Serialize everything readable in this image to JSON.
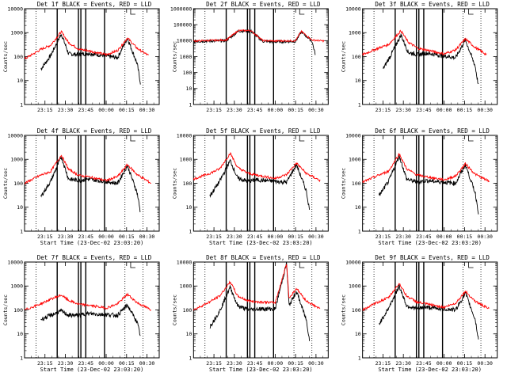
{
  "chart_data": [
    {
      "type": "line",
      "title": "Det 1f BLACK = Events, RED = LLD",
      "profile": "A",
      "yticks": [
        "1",
        "10",
        "100",
        "1000",
        "10000"
      ],
      "xtick_labels": [
        "23:15",
        "23:30",
        "23:45",
        "00:00",
        "00:15",
        "00:30"
      ],
      "xlabel": "",
      "ylabel": "Counts/sec",
      "series": [
        {
          "name": "Events",
          "color": "#000000",
          "points": [
            [
              23.2,
              30
            ],
            [
              23.32,
              110
            ],
            [
              23.45,
              900
            ],
            [
              23.54,
              130
            ],
            [
              23.67,
              120
            ],
            [
              23.77,
              140
            ],
            [
              24.14,
              90
            ],
            [
              24.26,
              600
            ],
            [
              24.38,
              50
            ],
            [
              24.42,
              8
            ]
          ]
        },
        {
          "name": "LLD",
          "color": "#ff0000",
          "points": [
            [
              23.0,
              80
            ],
            [
              23.2,
              200
            ],
            [
              23.32,
              300
            ],
            [
              23.45,
              1100
            ],
            [
              23.54,
              380
            ],
            [
              23.67,
              200
            ],
            [
              23.77,
              180
            ],
            [
              24.0,
              120
            ],
            [
              24.14,
              180
            ],
            [
              24.26,
              600
            ],
            [
              24.38,
              220
            ],
            [
              24.52,
              110
            ]
          ]
        }
      ]
    },
    {
      "type": "line",
      "title": "Det 2f BLACK = Events, RED = LLD",
      "profile": "B",
      "yticks": [
        "1",
        "10",
        "100",
        "1000",
        "10000",
        "100000",
        "1000000"
      ],
      "xtick_labels": [
        "23:15",
        "23:30",
        "23:45",
        "00:00",
        "00:15",
        "00:30"
      ],
      "xlabel": "",
      "ylabel": "Counts/sec",
      "series": [
        {
          "name": "Events",
          "color": "#000000",
          "points": [
            [
              23.0,
              9000
            ],
            [
              23.4,
              10000
            ],
            [
              23.55,
              40000
            ],
            [
              23.7,
              40000
            ],
            [
              23.85,
              9000
            ],
            [
              24.0,
              8500
            ],
            [
              24.25,
              9000
            ],
            [
              24.32,
              35000
            ],
            [
              24.45,
              9500
            ],
            [
              24.49,
              1500
            ]
          ]
        },
        {
          "name": "LLD",
          "color": "#ff0000",
          "points": [
            [
              23.0,
              9500
            ],
            [
              23.4,
              11000
            ],
            [
              23.55,
              43000
            ],
            [
              23.7,
              43000
            ],
            [
              23.85,
              10000
            ],
            [
              24.0,
              9500
            ],
            [
              24.25,
              10000
            ],
            [
              24.32,
              38000
            ],
            [
              24.45,
              11000
            ],
            [
              24.6,
              9500
            ]
          ]
        }
      ]
    },
    {
      "type": "line",
      "title": "Det 3f BLACK = Events, RED = LLD",
      "profile": "A",
      "yticks": [
        "1",
        "10",
        "100",
        "1000",
        "10000"
      ],
      "xtick_labels": [
        "23:15",
        "23:30",
        "23:45",
        "00:00",
        "00:15",
        "00:30"
      ],
      "xlabel": "",
      "ylabel": "Counts/sec",
      "series": [
        {
          "name": "Events",
          "color": "#000000",
          "points": [
            [
              23.25,
              30
            ],
            [
              23.35,
              120
            ],
            [
              23.47,
              800
            ],
            [
              23.56,
              150
            ],
            [
              23.68,
              120
            ],
            [
              23.78,
              140
            ],
            [
              24.14,
              90
            ],
            [
              24.26,
              500
            ],
            [
              24.38,
              40
            ],
            [
              24.42,
              6
            ]
          ]
        },
        {
          "name": "LLD",
          "color": "#ff0000",
          "points": [
            [
              23.0,
              120
            ],
            [
              23.2,
              230
            ],
            [
              23.32,
              320
            ],
            [
              23.47,
              1200
            ],
            [
              23.56,
              400
            ],
            [
              23.68,
              220
            ],
            [
              23.78,
              190
            ],
            [
              24.0,
              130
            ],
            [
              24.14,
              190
            ],
            [
              24.26,
              550
            ],
            [
              24.38,
              240
            ],
            [
              24.52,
              120
            ]
          ]
        }
      ]
    },
    {
      "type": "line",
      "title": "Det 4f BLACK = Events, RED = LLD",
      "profile": "A",
      "yticks": [
        "1",
        "10",
        "100",
        "1000",
        "10000"
      ],
      "xtick_labels": [
        "23:15",
        "23:30",
        "23:45",
        "00:00",
        "00:15",
        "00:30"
      ],
      "xlabel": "Start Time (23-Dec-02 23:03:20)",
      "ylabel": "Counts/sec",
      "series": [
        {
          "name": "Events",
          "color": "#000000",
          "points": [
            [
              23.2,
              28
            ],
            [
              23.32,
              120
            ],
            [
              23.45,
              1300
            ],
            [
              23.54,
              150
            ],
            [
              23.67,
              130
            ],
            [
              23.77,
              150
            ],
            [
              24.14,
              100
            ],
            [
              24.26,
              550
            ],
            [
              24.38,
              40
            ],
            [
              24.42,
              6
            ]
          ]
        },
        {
          "name": "LLD",
          "color": "#ff0000",
          "points": [
            [
              23.0,
              100
            ],
            [
              23.2,
              220
            ],
            [
              23.32,
              310
            ],
            [
              23.45,
              1500
            ],
            [
              23.54,
              380
            ],
            [
              23.67,
              210
            ],
            [
              23.77,
              190
            ],
            [
              24.0,
              130
            ],
            [
              24.14,
              190
            ],
            [
              24.26,
              600
            ],
            [
              24.38,
              230
            ],
            [
              24.55,
              100
            ]
          ]
        }
      ]
    },
    {
      "type": "line",
      "title": "Det 5f BLACK = Events, RED = LLD",
      "profile": "A",
      "yticks": [
        "1",
        "10",
        "100",
        "1000",
        "10000"
      ],
      "xtick_labels": [
        "23:15",
        "23:30",
        "23:45",
        "00:00",
        "00:15",
        "00:30"
      ],
      "xlabel": "Start Time (23-Dec-02 23:03:20)",
      "ylabel": "Counts/sec",
      "series": [
        {
          "name": "Events",
          "color": "#000000",
          "points": [
            [
              23.2,
              30
            ],
            [
              23.32,
              120
            ],
            [
              23.45,
              900
            ],
            [
              23.54,
              160
            ],
            [
              23.67,
              120
            ],
            [
              23.77,
              140
            ],
            [
              24.14,
              110
            ],
            [
              24.26,
              600
            ],
            [
              24.38,
              50
            ],
            [
              24.42,
              8
            ]
          ]
        },
        {
          "name": "LLD",
          "color": "#ff0000",
          "points": [
            [
              23.0,
              150
            ],
            [
              23.2,
              260
            ],
            [
              23.32,
              400
            ],
            [
              23.45,
              1800
            ],
            [
              23.54,
              450
            ],
            [
              23.67,
              260
            ],
            [
              23.77,
              220
            ],
            [
              24.0,
              160
            ],
            [
              24.14,
              230
            ],
            [
              24.26,
              700
            ],
            [
              24.38,
              260
            ],
            [
              24.55,
              130
            ]
          ]
        }
      ]
    },
    {
      "type": "line",
      "title": "Det 6f BLACK = Events, RED = LLD",
      "profile": "A",
      "yticks": [
        "1",
        "10",
        "100",
        "1000",
        "10000"
      ],
      "xtick_labels": [
        "23:15",
        "23:30",
        "23:45",
        "00:00",
        "00:15",
        "00:30"
      ],
      "xlabel": "Start Time (23-Dec-02 23:03:20)",
      "ylabel": "Counts/sec",
      "series": [
        {
          "name": "Events",
          "color": "#000000",
          "points": [
            [
              23.2,
              30
            ],
            [
              23.32,
              120
            ],
            [
              23.45,
              1400
            ],
            [
              23.54,
              150
            ],
            [
              23.67,
              110
            ],
            [
              23.77,
              130
            ],
            [
              24.14,
              100
            ],
            [
              24.26,
              600
            ],
            [
              24.38,
              40
            ],
            [
              24.42,
              6
            ]
          ]
        },
        {
          "name": "LLD",
          "color": "#ff0000",
          "points": [
            [
              23.0,
              110
            ],
            [
              23.2,
              220
            ],
            [
              23.32,
              320
            ],
            [
              23.45,
              1700
            ],
            [
              23.54,
              400
            ],
            [
              23.67,
              220
            ],
            [
              23.77,
              190
            ],
            [
              24.0,
              140
            ],
            [
              24.14,
              200
            ],
            [
              24.26,
              650
            ],
            [
              24.38,
              240
            ],
            [
              24.55,
              120
            ]
          ]
        }
      ]
    },
    {
      "type": "line",
      "title": "Det 7f BLACK = Events, RED = LLD",
      "profile": "A",
      "yticks": [
        "1",
        "10",
        "100",
        "1000",
        "10000"
      ],
      "xtick_labels": [
        "23:15",
        "23:30",
        "23:45",
        "00:00",
        "00:15",
        "00:30"
      ],
      "xlabel": "Start Time (23-Dec-02 23:03:20)",
      "ylabel": "Counts/sec",
      "series": [
        {
          "name": "Events",
          "color": "#000000",
          "points": [
            [
              23.2,
              40
            ],
            [
              23.32,
              60
            ],
            [
              23.45,
              90
            ],
            [
              23.54,
              60
            ],
            [
              23.67,
              60
            ],
            [
              23.77,
              70
            ],
            [
              24.14,
              60
            ],
            [
              24.26,
              160
            ],
            [
              24.38,
              30
            ],
            [
              24.42,
              8
            ]
          ]
        },
        {
          "name": "LLD",
          "color": "#ff0000",
          "points": [
            [
              23.0,
              100
            ],
            [
              23.2,
              180
            ],
            [
              23.32,
              280
            ],
            [
              23.45,
              420
            ],
            [
              23.54,
              250
            ],
            [
              23.67,
              170
            ],
            [
              23.77,
              160
            ],
            [
              24.0,
              120
            ],
            [
              24.14,
              180
            ],
            [
              24.26,
              450
            ],
            [
              24.38,
              200
            ],
            [
              24.55,
              100
            ]
          ]
        }
      ]
    },
    {
      "type": "line",
      "title": "Det 8f BLACK = Events, RED = LLD",
      "profile": "A",
      "yticks": [
        "1",
        "10",
        "100",
        "1000",
        "10000"
      ],
      "xtick_labels": [
        "23:15",
        "23:30",
        "23:45",
        "00:00",
        "00:15",
        "00:30"
      ],
      "xlabel": "Start Time (23-Dec-02 23:03:20)",
      "ylabel": "Counts/sec",
      "series": [
        {
          "name": "Events",
          "color": "#000000",
          "points": [
            [
              23.2,
              20
            ],
            [
              23.32,
              90
            ],
            [
              23.45,
              900
            ],
            [
              23.54,
              150
            ],
            [
              23.67,
              100
            ],
            [
              23.77,
              110
            ],
            [
              24.0,
              110
            ],
            [
              24.14,
              9000
            ],
            [
              24.17,
              150
            ],
            [
              24.26,
              600
            ],
            [
              24.38,
              40
            ],
            [
              24.42,
              6
            ]
          ]
        },
        {
          "name": "LLD",
          "color": "#ff0000",
          "points": [
            [
              23.0,
              100
            ],
            [
              23.2,
              220
            ],
            [
              23.32,
              380
            ],
            [
              23.45,
              1500
            ],
            [
              23.54,
              380
            ],
            [
              23.67,
              240
            ],
            [
              23.77,
              220
            ],
            [
              24.0,
              200
            ],
            [
              24.14,
              8500
            ],
            [
              24.17,
              300
            ],
            [
              24.26,
              800
            ],
            [
              24.38,
              240
            ],
            [
              24.55,
              110
            ]
          ]
        }
      ]
    },
    {
      "type": "line",
      "title": "Det 9f BLACK = Events, RED = LLD",
      "profile": "A",
      "yticks": [
        "1",
        "10",
        "100",
        "1000",
        "10000"
      ],
      "xtick_labels": [
        "23:15",
        "23:30",
        "23:45",
        "00:00",
        "00:15",
        "00:30"
      ],
      "xlabel": "Start Time (23-Dec-02 23:03:20)",
      "ylabel": "Counts/sec",
      "series": [
        {
          "name": "Events",
          "color": "#000000",
          "points": [
            [
              23.2,
              25
            ],
            [
              23.32,
              120
            ],
            [
              23.45,
              1000
            ],
            [
              23.54,
              150
            ],
            [
              23.67,
              110
            ],
            [
              23.77,
              130
            ],
            [
              24.14,
              100
            ],
            [
              24.26,
              500
            ],
            [
              24.38,
              40
            ],
            [
              24.42,
              6
            ]
          ]
        },
        {
          "name": "LLD",
          "color": "#ff0000",
          "points": [
            [
              23.0,
              100
            ],
            [
              23.2,
              220
            ],
            [
              23.32,
              330
            ],
            [
              23.45,
              1300
            ],
            [
              23.54,
              380
            ],
            [
              23.67,
              210
            ],
            [
              23.77,
              180
            ],
            [
              24.0,
              130
            ],
            [
              24.14,
              190
            ],
            [
              24.26,
              600
            ],
            [
              24.38,
              230
            ],
            [
              24.55,
              110
            ]
          ]
        }
      ]
    }
  ],
  "x_domain": [
    23.0,
    24.65
  ],
  "xtick_hours": [
    23.25,
    23.5,
    23.75,
    24.0,
    24.25,
    24.5
  ],
  "dotted_marker_hours": [
    23.14,
    24.23,
    24.45
  ],
  "solid_marker_hours": [
    23.4,
    23.66,
    23.69,
    23.75,
    23.98
  ],
  "small_tick_hour": 24.3
}
